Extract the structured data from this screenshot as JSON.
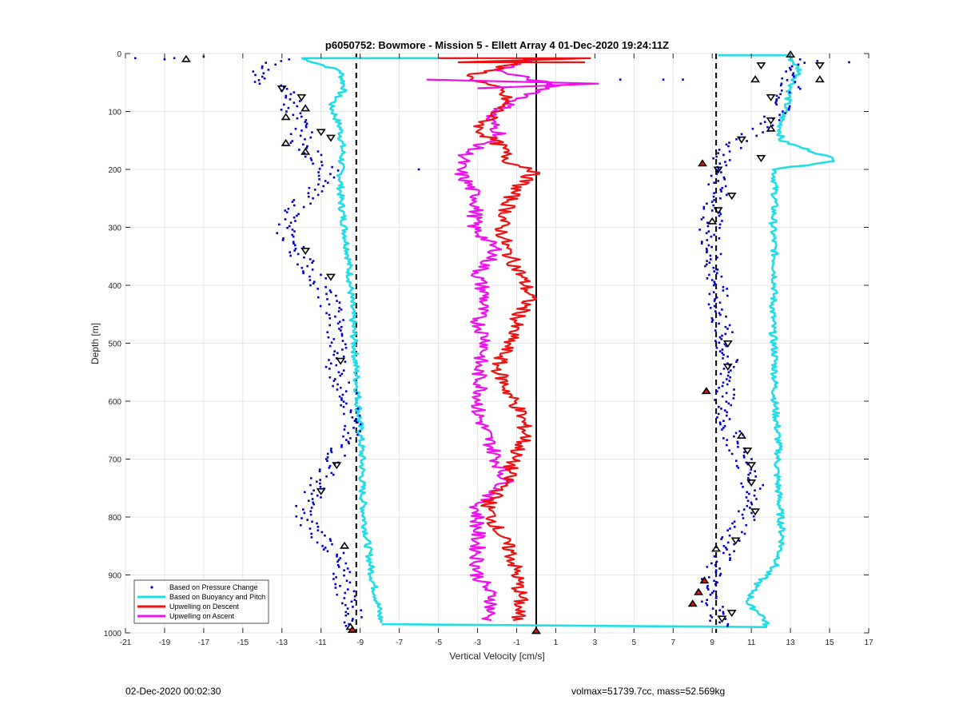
{
  "chart_data": {
    "type": "scatter",
    "title": "p6050752: Bowmore - Mission 5 - Ellett Array 4 01-Dec-2020 19:24:11Z",
    "xlabel": "Vertical Velocity [cm/s]",
    "ylabel": "Depth [m]",
    "xlim": [
      -21,
      17
    ],
    "ylim": [
      0,
      1000
    ],
    "y_reversed": true,
    "grid": true,
    "legend_position": "bottom-left",
    "x_ticks": [
      -21,
      -19,
      -17,
      -15,
      -13,
      -11,
      -9,
      -7,
      -5,
      -3,
      -1,
      1,
      3,
      5,
      7,
      9,
      11,
      13,
      15,
      17
    ],
    "y_ticks": [
      0,
      100,
      200,
      300,
      400,
      500,
      600,
      700,
      800,
      900,
      1000
    ],
    "reference_lines": {
      "dashed_x": [
        -9.2,
        9.2
      ],
      "solid_x": [
        0
      ]
    },
    "series": [
      {
        "name": "Based on Pressure Change",
        "color": "#0000cc",
        "style": "dots",
        "descent": {
          "depth": [
            10,
            40,
            70,
            100,
            130,
            160,
            200,
            250,
            300,
            350,
            400,
            450,
            500,
            550,
            600,
            650,
            700,
            750,
            800,
            850,
            900,
            950,
            990
          ],
          "velocity": [
            -13,
            -14.5,
            -12.5,
            -12.5,
            -12,
            -12,
            -10.5,
            -11.8,
            -13,
            -12,
            -11,
            -10.3,
            -10.2,
            -10.2,
            -9.5,
            -9.5,
            -10.3,
            -11.3,
            -12,
            -10.5,
            -10,
            -9.5,
            -9.2
          ]
        },
        "ascent": {
          "depth": [
            990,
            960,
            920,
            880,
            840,
            800,
            760,
            720,
            680,
            640,
            600,
            560,
            520,
            480,
            440,
            400,
            350,
            300,
            250,
            200,
            180,
            150,
            120,
            90,
            60,
            30,
            10
          ],
          "velocity": [
            9.5,
            9.2,
            8.7,
            9.3,
            9.9,
            10.8,
            11.2,
            10.8,
            10.3,
            9.8,
            9.5,
            9.9,
            9.7,
            9.5,
            9.3,
            9.2,
            9.0,
            8.9,
            9.2,
            9.5,
            9.4,
            10.5,
            12,
            12.5,
            13,
            13,
            14
          ]
        }
      },
      {
        "name": "Based on Buoyancy and Pitch",
        "color": "#22dde6",
        "style": "line",
        "descent": {
          "depth": [
            8,
            30,
            60,
            90,
            130,
            170,
            200,
            250,
            300,
            350,
            400,
            450,
            500,
            550,
            600,
            650,
            700,
            750,
            800,
            850,
            900,
            950,
            985
          ],
          "velocity": [
            -12,
            -10,
            -9.8,
            -10.5,
            -10,
            -9.9,
            -10,
            -10,
            -9.8,
            -9.6,
            -9.5,
            -9.4,
            -9.3,
            -9.2,
            -9.1,
            -9.0,
            -8.9,
            -8.9,
            -8.8,
            -8.6,
            -8.4,
            -8.1,
            -7.9
          ]
        },
        "ascent": {
          "depth": [
            990,
            970,
            950,
            920,
            880,
            840,
            800,
            760,
            720,
            680,
            640,
            600,
            560,
            520,
            480,
            440,
            400,
            350,
            300,
            250,
            200,
            185,
            150,
            120,
            90,
            60,
            30,
            8
          ],
          "velocity": [
            11.8,
            11.6,
            10.8,
            11.2,
            12.3,
            12.6,
            12.5,
            12.4,
            12.3,
            12.4,
            12.3,
            12.2,
            12.2,
            12.2,
            12.1,
            12.1,
            12.2,
            12.2,
            12.1,
            12.2,
            12.2,
            15.5,
            12.5,
            12.5,
            12.8,
            13,
            13.5,
            13
          ]
        }
      },
      {
        "name": "Upwelling on Descent",
        "color": "#ee1111",
        "style": "line",
        "depth": [
          8,
          20,
          40,
          60,
          80,
          100,
          130,
          160,
          190,
          200,
          240,
          300,
          340,
          380,
          420,
          460,
          500,
          540,
          580,
          620,
          660,
          700,
          740,
          780,
          820,
          860,
          900,
          940,
          980
        ],
        "velocity": [
          0,
          -1.5,
          -3.5,
          -2,
          -1.5,
          -2,
          -3,
          -1.8,
          -1.3,
          0,
          -1.2,
          -1.8,
          -1.5,
          -0.8,
          -0.3,
          -1,
          -1.4,
          -2,
          -1.5,
          -0.8,
          -0.5,
          -1.2,
          -1.5,
          -2.5,
          -2,
          -1.3,
          -1,
          -0.8,
          -1
        ]
      },
      {
        "name": "Upwelling on Ascent",
        "color": "#ee11ee",
        "style": "line",
        "depth": [
          8,
          30,
          55,
          80,
          110,
          140,
          170,
          200,
          250,
          300,
          340,
          380,
          420,
          460,
          500,
          540,
          580,
          620,
          660,
          700,
          740,
          780,
          820,
          860,
          900,
          940,
          980
        ],
        "velocity": [
          0,
          -2,
          1,
          -1,
          -2.5,
          -1.8,
          -3.5,
          -4,
          -3,
          -3.2,
          -2,
          -3,
          -2.6,
          -3,
          -2.5,
          -3,
          -2.8,
          -3,
          -2.5,
          -2,
          -1.5,
          -3,
          -3,
          -3,
          -3,
          -2.2,
          -2.5
        ]
      }
    ]
  },
  "footer": {
    "timestamp": "02-Dec-2020 00:02:30",
    "info": "volmax=51739.7cc, mass=52.569kg"
  }
}
